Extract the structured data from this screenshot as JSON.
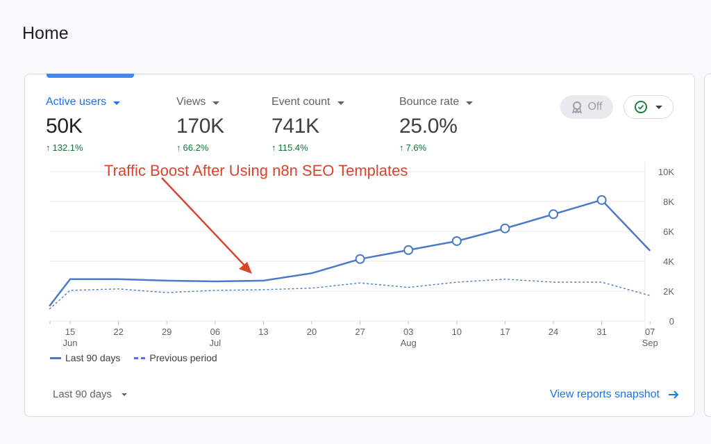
{
  "page": {
    "title": "Home"
  },
  "metrics": [
    {
      "label": "Active users",
      "value": "50K",
      "change": "132.1%"
    },
    {
      "label": "Views",
      "value": "170K",
      "change": "66.2%"
    },
    {
      "label": "Event count",
      "value": "741K",
      "change": "115.4%"
    },
    {
      "label": "Bounce rate",
      "value": "25.0%",
      "change": "7.6%"
    }
  ],
  "controls": {
    "off_label": "Off"
  },
  "annotation": "Traffic Boost After Using n8n SEO Templates",
  "footer": {
    "range_label": "Last 90 days",
    "view_link": "View reports snapshot"
  },
  "colors": {
    "accent": "#1a73e8",
    "line": "#4a79c9",
    "positive": "#137333",
    "annotation": "#d9442b"
  },
  "icons": {
    "off": "award-icon",
    "check": "check-circle-icon",
    "link": "arrow-right-icon"
  },
  "chart_data": {
    "type": "line",
    "x": [
      "",
      "15 Jun",
      "22",
      "29",
      "06 Jul",
      "13",
      "20",
      "27",
      "03 Aug",
      "10",
      "17",
      "24",
      "31",
      "07 Sep"
    ],
    "tick_labels": [
      {
        "day": "15",
        "month": "Jun"
      },
      {
        "day": "22",
        "month": ""
      },
      {
        "day": "29",
        "month": ""
      },
      {
        "day": "06",
        "month": "Jul"
      },
      {
        "day": "13",
        "month": ""
      },
      {
        "day": "20",
        "month": ""
      },
      {
        "day": "27",
        "month": ""
      },
      {
        "day": "03",
        "month": "Aug"
      },
      {
        "day": "10",
        "month": ""
      },
      {
        "day": "17",
        "month": ""
      },
      {
        "day": "24",
        "month": ""
      },
      {
        "day": "31",
        "month": ""
      },
      {
        "day": "07",
        "month": "Sep"
      }
    ],
    "y_ticks": [
      "0",
      "2K",
      "4K",
      "6K",
      "8K",
      "10K"
    ],
    "ylim": [
      0,
      10000
    ],
    "series": [
      {
        "name": "Last 90 days",
        "style": "solid",
        "x_days": [
          -3,
          0,
          7,
          14,
          21,
          28,
          35,
          42,
          49,
          56,
          63,
          70,
          77,
          84
        ],
        "values": [
          1000,
          2800,
          2800,
          2700,
          2650,
          2700,
          3200,
          4150,
          4750,
          5350,
          6200,
          7150,
          8100,
          4700
        ],
        "markers": [
          false,
          false,
          false,
          false,
          false,
          false,
          false,
          true,
          true,
          true,
          true,
          true,
          true,
          false
        ]
      },
      {
        "name": "Previous period",
        "style": "dashed",
        "x_days": [
          -3,
          0,
          7,
          14,
          21,
          28,
          35,
          42,
          49,
          56,
          63,
          70,
          77,
          84
        ],
        "values": [
          800,
          2050,
          2150,
          1900,
          2050,
          2100,
          2200,
          2550,
          2250,
          2600,
          2800,
          2600,
          2600,
          1700
        ]
      }
    ],
    "grid": true,
    "legend": "bottom-left"
  }
}
